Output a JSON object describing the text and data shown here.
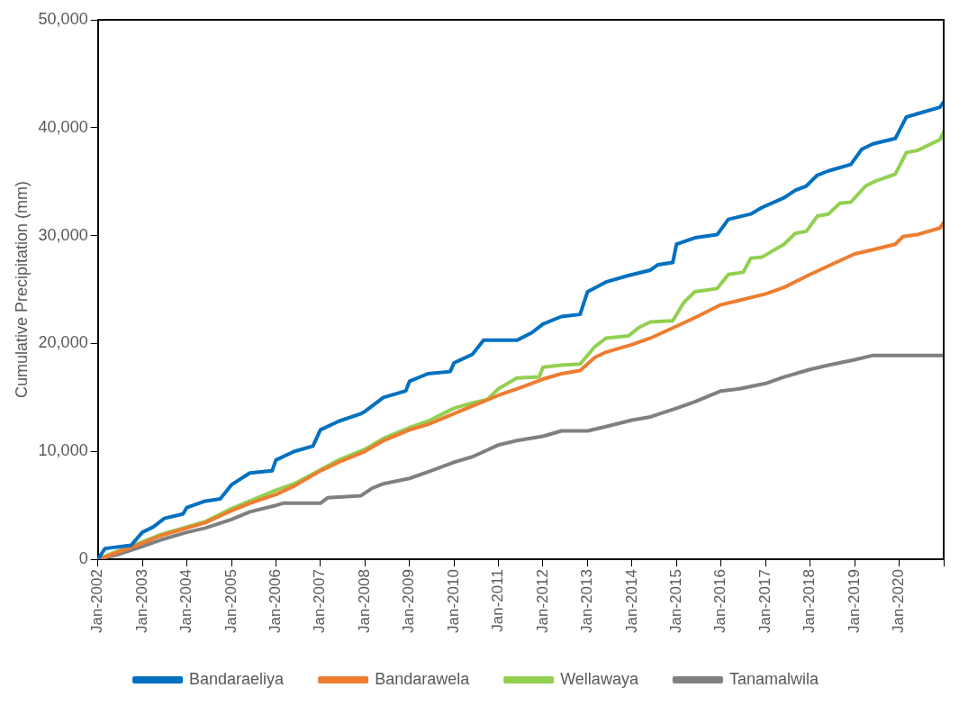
{
  "chart_data": {
    "type": "line",
    "ylabel": "Cumulative Precipitation (mm)",
    "xlim": [
      "2002-01",
      "2021-01"
    ],
    "xticks": [
      {
        "value": "2002-01",
        "label": "Jan-2002"
      },
      {
        "value": "2003-01",
        "label": "Jan-2003"
      },
      {
        "value": "2004-01",
        "label": "Jan-2004"
      },
      {
        "value": "2005-01",
        "label": "Jan-2005"
      },
      {
        "value": "2006-01",
        "label": "Jan-2006"
      },
      {
        "value": "2007-01",
        "label": "Jan-2007"
      },
      {
        "value": "2008-01",
        "label": "Jan-2008"
      },
      {
        "value": "2009-01",
        "label": "Jan-2009"
      },
      {
        "value": "2010-01",
        "label": "Jan-2010"
      },
      {
        "value": "2011-01",
        "label": "Jan-2011"
      },
      {
        "value": "2012-01",
        "label": "Jan-2012"
      },
      {
        "value": "2013-01",
        "label": "Jan-2013"
      },
      {
        "value": "2014-01",
        "label": "Jan-2014"
      },
      {
        "value": "2015-01",
        "label": "Jan-2015"
      },
      {
        "value": "2016-01",
        "label": "Jan-2016"
      },
      {
        "value": "2017-01",
        "label": "Jan-2017"
      },
      {
        "value": "2018-01",
        "label": "Jan-2018"
      },
      {
        "value": "2019-01",
        "label": "Jan-2019"
      },
      {
        "value": "2020-01",
        "label": "Jan-2020"
      },
      {
        "value": "2021-01",
        "label": null
      }
    ],
    "ylim": [
      0,
      50000
    ],
    "yticks": [
      {
        "value": 0,
        "label": "0"
      },
      {
        "value": 10000,
        "label": "10,000"
      },
      {
        "value": 20000,
        "label": "20,000"
      },
      {
        "value": 30000,
        "label": "30,000"
      },
      {
        "value": 40000,
        "label": "40,000"
      },
      {
        "value": 50000,
        "label": "50,000"
      }
    ],
    "grid": false,
    "legend": "bottom",
    "marker": "none",
    "line_style": "solid",
    "series": [
      {
        "name": "Bandaraeliya",
        "color": "#0070c0",
        "x": [
          "2002-01",
          "2002-03",
          "2002-10",
          "2003-01",
          "2003-04",
          "2003-07",
          "2003-12",
          "2004-01",
          "2004-06",
          "2004-10",
          "2005-01",
          "2005-06",
          "2005-12",
          "2006-01",
          "2006-06",
          "2006-11",
          "2007-01",
          "2007-06",
          "2007-12",
          "2008-01",
          "2008-06",
          "2008-12",
          "2009-01",
          "2009-06",
          "2009-12",
          "2010-01",
          "2010-06",
          "2010-09",
          "2011-06",
          "2011-10",
          "2012-01",
          "2012-06",
          "2012-11",
          "2013-01",
          "2013-06",
          "2013-12",
          "2014-06",
          "2014-08",
          "2014-12",
          "2015-01",
          "2015-06",
          "2015-12",
          "2016-03",
          "2016-09",
          "2016-12",
          "2017-06",
          "2017-09",
          "2017-12",
          "2018-03",
          "2018-06",
          "2018-12",
          "2019-03",
          "2019-06",
          "2019-12",
          "2020-03",
          "2020-06",
          "2020-12",
          "2021-01"
        ],
        "values": [
          0,
          1000,
          1300,
          2500,
          3000,
          3800,
          4200,
          4800,
          5400,
          5600,
          6900,
          8000,
          8200,
          9200,
          10000,
          10500,
          12000,
          12800,
          13500,
          13700,
          15000,
          15600,
          16500,
          17200,
          17400,
          18200,
          19000,
          20300,
          20300,
          21000,
          21800,
          22500,
          22700,
          24800,
          25700,
          26300,
          26800,
          27300,
          27500,
          29200,
          29800,
          30100,
          31500,
          32000,
          32600,
          33500,
          34200,
          34600,
          35600,
          36000,
          36600,
          38000,
          38500,
          39000,
          41000,
          41300,
          41900,
          42400
        ]
      },
      {
        "name": "Bandarawela",
        "color": "#ed7d31",
        "x": [
          "2002-01",
          "2002-06",
          "2003-01",
          "2003-06",
          "2004-01",
          "2004-06",
          "2005-01",
          "2005-06",
          "2006-01",
          "2006-06",
          "2007-01",
          "2007-06",
          "2008-01",
          "2008-06",
          "2009-01",
          "2009-06",
          "2010-01",
          "2010-06",
          "2011-01",
          "2011-06",
          "2012-01",
          "2012-06",
          "2012-11",
          "2013-03",
          "2013-06",
          "2014-01",
          "2014-06",
          "2015-01",
          "2015-06",
          "2016-01",
          "2016-06",
          "2017-01",
          "2017-06",
          "2018-01",
          "2018-06",
          "2019-01",
          "2019-06",
          "2019-12",
          "2020-02",
          "2020-06",
          "2020-12",
          "2021-01"
        ],
        "values": [
          0,
          600,
          1500,
          2200,
          2900,
          3400,
          4500,
          5200,
          6000,
          6800,
          8200,
          9000,
          10000,
          11000,
          12000,
          12500,
          13500,
          14200,
          15200,
          15800,
          16700,
          17200,
          17500,
          18700,
          19200,
          19900,
          20500,
          21600,
          22400,
          23600,
          24000,
          24600,
          25200,
          26400,
          27200,
          28300,
          28700,
          29200,
          29900,
          30100,
          30700,
          31200
        ]
      },
      {
        "name": "Wellawaya",
        "color": "#92d050",
        "x": [
          "2002-01",
          "2002-06",
          "2003-01",
          "2003-06",
          "2004-01",
          "2004-06",
          "2005-01",
          "2005-06",
          "2006-01",
          "2006-06",
          "2007-01",
          "2007-06",
          "2008-01",
          "2008-06",
          "2009-01",
          "2009-06",
          "2010-01",
          "2010-06",
          "2010-10",
          "2011-01",
          "2011-06",
          "2011-12",
          "2012-01",
          "2012-06",
          "2012-11",
          "2013-03",
          "2013-06",
          "2013-12",
          "2014-03",
          "2014-06",
          "2014-12",
          "2015-03",
          "2015-06",
          "2015-12",
          "2016-03",
          "2016-07",
          "2016-09",
          "2016-12",
          "2017-06",
          "2017-09",
          "2017-12",
          "2018-03",
          "2018-06",
          "2018-09",
          "2018-12",
          "2019-04",
          "2019-07",
          "2019-12",
          "2020-03",
          "2020-06",
          "2020-12",
          "2021-01"
        ],
        "values": [
          0,
          700,
          1600,
          2300,
          3000,
          3500,
          4700,
          5400,
          6400,
          7000,
          8300,
          9200,
          10200,
          11200,
          12200,
          12800,
          14000,
          14500,
          14800,
          15800,
          16800,
          16900,
          17800,
          18000,
          18100,
          19700,
          20500,
          20700,
          21500,
          22000,
          22100,
          23800,
          24800,
          25100,
          26400,
          26600,
          27900,
          28000,
          29200,
          30200,
          30400,
          31800,
          32000,
          33000,
          33100,
          34600,
          35100,
          35700,
          37700,
          37900,
          38900,
          39600
        ]
      },
      {
        "name": "Tanamalwila",
        "color": "#808080",
        "x": [
          "2002-01",
          "2002-06",
          "2003-01",
          "2003-06",
          "2004-01",
          "2004-06",
          "2005-01",
          "2005-06",
          "2006-01",
          "2006-03",
          "2007-01",
          "2007-03",
          "2007-12",
          "2008-03",
          "2008-06",
          "2009-01",
          "2009-06",
          "2010-01",
          "2010-06",
          "2011-01",
          "2011-06",
          "2012-01",
          "2012-06",
          "2013-01",
          "2013-06",
          "2014-01",
          "2014-06",
          "2015-01",
          "2015-06",
          "2016-01",
          "2016-06",
          "2017-01",
          "2017-06",
          "2018-01",
          "2018-06",
          "2019-01",
          "2019-06",
          "2021-01"
        ],
        "values": [
          0,
          400,
          1200,
          1800,
          2500,
          2900,
          3700,
          4400,
          5000,
          5200,
          5200,
          5700,
          5900,
          6600,
          7000,
          7500,
          8100,
          9000,
          9500,
          10600,
          11000,
          11400,
          11900,
          11900,
          12300,
          12900,
          13200,
          14000,
          14600,
          15600,
          15800,
          16300,
          16900,
          17600,
          18000,
          18500,
          18900,
          18900
        ]
      }
    ]
  }
}
